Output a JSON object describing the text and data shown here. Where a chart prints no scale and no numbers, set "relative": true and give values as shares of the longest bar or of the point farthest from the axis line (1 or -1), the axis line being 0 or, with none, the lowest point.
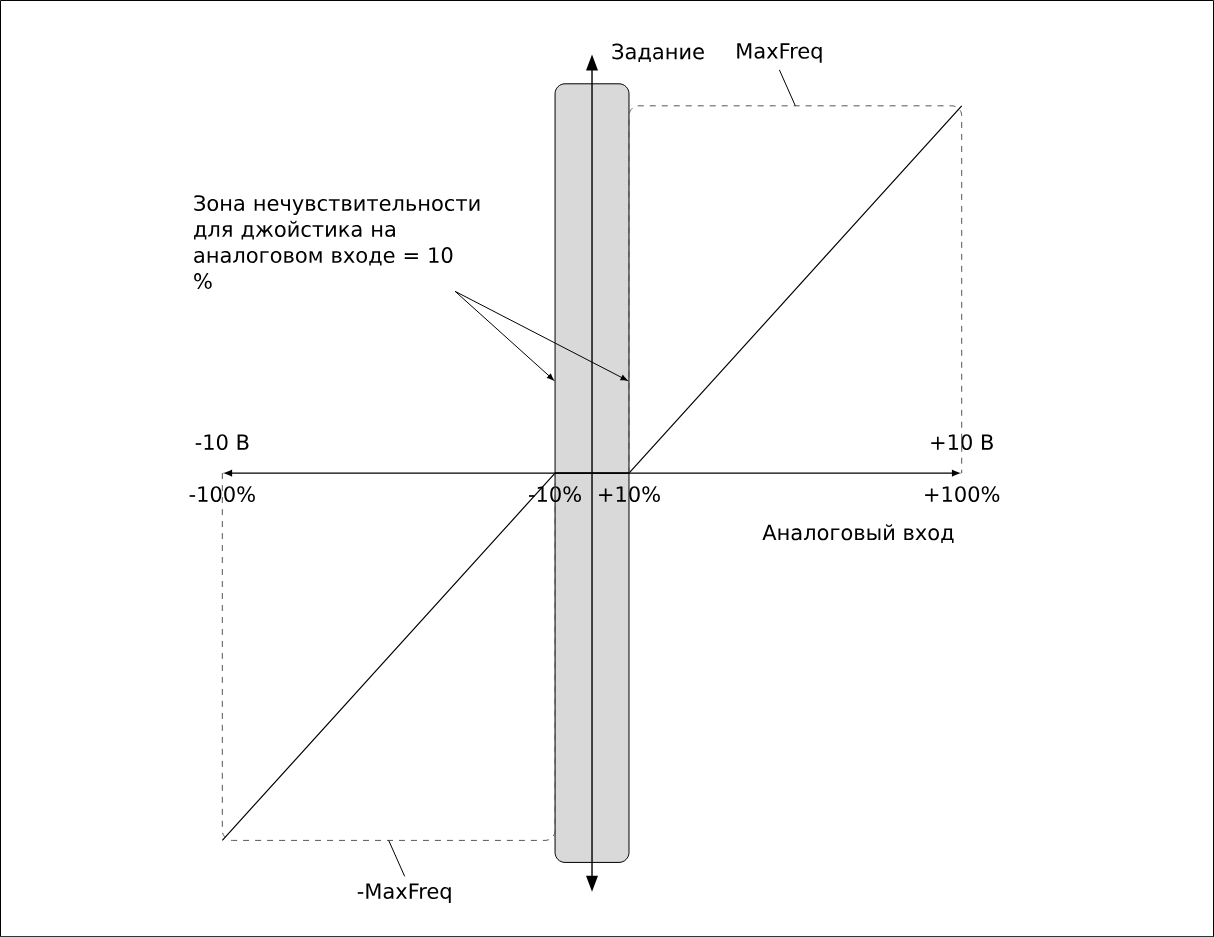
{
  "chart_data": {
    "type": "line",
    "relative": true,
    "xlabel": "Аналоговый вход",
    "ylabel": "Задание",
    "xlim": [
      -100,
      100
    ],
    "xticks": [
      {
        "value": -100,
        "label": "-100%"
      },
      {
        "value": -10,
        "label": "-10%"
      },
      {
        "value": 10,
        "label": "+10%"
      },
      {
        "value": 100,
        "label": "+100%"
      }
    ],
    "series": [
      {
        "color": "#000000",
        "x": [
          -100,
          -10,
          10,
          100
        ],
        "values": [
          -1,
          0,
          0,
          1
        ],
        "line_style": "solid"
      }
    ],
    "bands": [
      {
        "axis": "x",
        "from": -10,
        "to": 10,
        "color": "#d9d9d9"
      }
    ],
    "annotations": [
      "MaxFreq",
      "-MaxFreq",
      "-10 В",
      "+10 В",
      "Зона нечувствительности для джойстика на аналоговом входе = 10 %"
    ],
    "marker": "none"
  }
}
